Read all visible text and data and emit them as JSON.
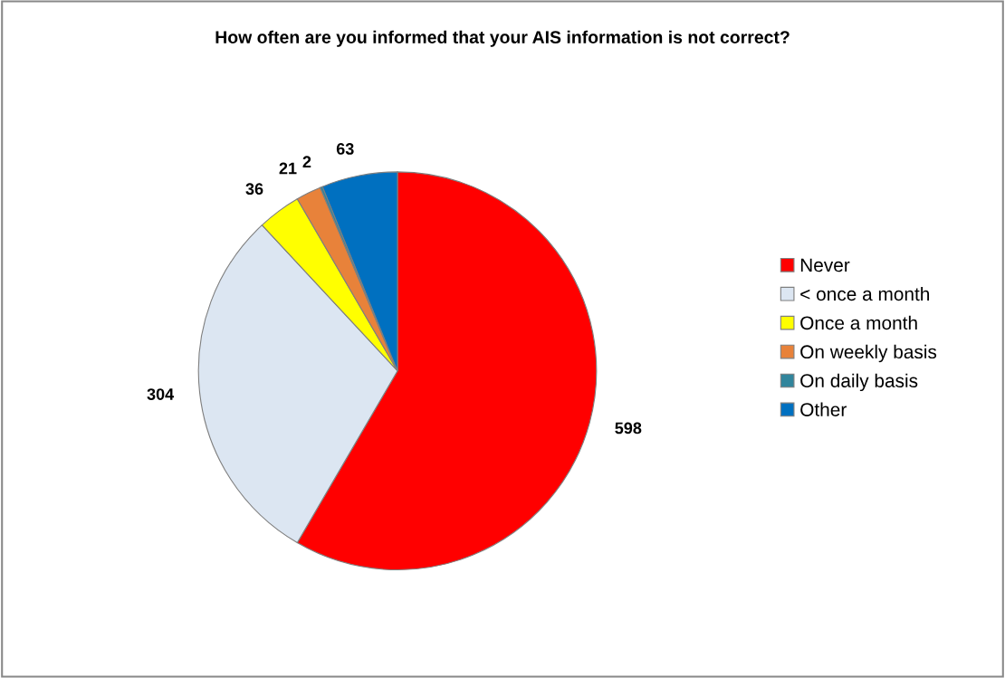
{
  "chart_data": {
    "type": "pie",
    "title": "How often are you informed that your AIS information is not correct?",
    "categories": [
      "Never",
      "< once a month",
      "Once a month",
      "On weekly basis",
      "On daily basis",
      "Other"
    ],
    "values": [
      598,
      304,
      36,
      21,
      2,
      63
    ],
    "colors": [
      "#ff0000",
      "#dce6f2",
      "#ffff00",
      "#e8823a",
      "#31859c",
      "#0070c0"
    ],
    "data_labels": true,
    "legend": "right"
  }
}
